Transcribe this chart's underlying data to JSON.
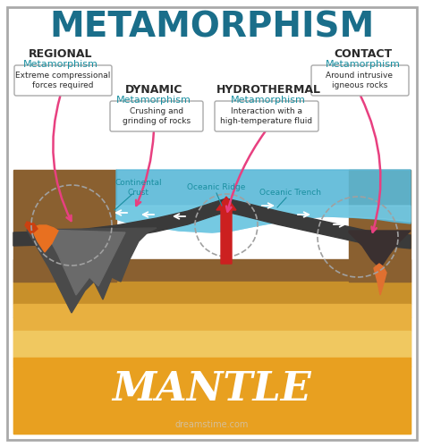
{
  "title": "METAMORPHISM",
  "title_color": "#1a6e8a",
  "title_fontsize": 28,
  "background_color": "#ffffff",
  "mantle_text": "MANTLE",
  "mantle_color": "#e8a020",
  "labels": {
    "regional_bold": "REGIONAL",
    "regional_sub": "Metamorphism",
    "contact_bold": "CONTACT",
    "contact_sub": "Metamorphism",
    "dynamic_bold": "DYNAMIC",
    "dynamic_sub": "Metamorphism",
    "hydrothermal_bold": "HYDROTHERMAL",
    "hydrothermal_sub": "Metamorphism"
  },
  "boxes": {
    "regional_desc": "Extreme compressional\nforces required",
    "contact_desc": "Around intrusive\nigneous rocks",
    "dynamic_desc": "Crushing and\ngrinding of rocks",
    "hydrothermal_desc": "Interaction with a\nhigh-temperature fluid"
  },
  "geo_labels": {
    "continental_crust": "Continental\nCrust",
    "oceanic_ridge": "Oceanic Ridge",
    "oceanic_trench": "Oceanic Trench"
  },
  "colors": {
    "teal": "#1a8fa0",
    "pink_arrow": "#e84080",
    "red_arrow": "#cc2020",
    "white_arrow": "#ffffff",
    "mountain_dark": "#4a4a4a",
    "mountain_mid": "#6a6a6a",
    "ocean_blue": "#5ab8d8",
    "ocean_blue2": "#7dd0e8",
    "ground_dark": "#8a6030",
    "ground_mid": "#c8902a",
    "ground_light": "#e8b040",
    "ground_lighter": "#f0c860",
    "mantle_orange": "#e8a020",
    "lava_orange": "#e87020",
    "lava_red": "#cc4010",
    "plate_dark": "#3a3a3a",
    "plate_color": "#555555",
    "dashed_circle": "#a0a0a0",
    "volcano_dark": "#3a3030",
    "volcano_eruption": "#e07030"
  }
}
